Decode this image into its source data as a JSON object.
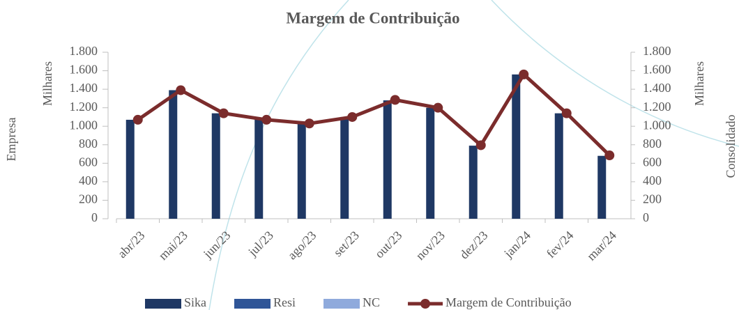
{
  "chart_data": {
    "type": "bar_line",
    "title": "Margem de Contribuição",
    "ylabel": "Milhares",
    "y2label": "Milhares",
    "left_label": "Empresa",
    "right_label": "Consolidado",
    "categories": [
      "abr/23",
      "mai/23",
      "jun/23",
      "jul/23",
      "ago/23",
      "set/23",
      "out/23",
      "nov/23",
      "dez/23",
      "jan/24",
      "fev/24",
      "mar/24"
    ],
    "series": [
      {
        "name": "Sika",
        "color": "#1f3864",
        "kind": "bar",
        "values": [
          1070,
          1390,
          1140,
          1080,
          1030,
          1100,
          1280,
          1200,
          790,
          1560,
          1140,
          680
        ]
      },
      {
        "name": "Resi",
        "color": "#2f5597",
        "kind": "bar",
        "values": [
          0,
          0,
          0,
          0,
          0,
          0,
          0,
          0,
          0,
          0,
          0,
          0
        ]
      },
      {
        "name": "NC",
        "color": "#8faadc",
        "kind": "bar",
        "values": [
          0,
          0,
          0,
          0,
          0,
          0,
          0,
          0,
          0,
          0,
          0,
          0
        ]
      },
      {
        "name": "Margem de Contribuição",
        "color": "#7b2c2c",
        "kind": "line",
        "axis": "y2",
        "values": [
          1070,
          1390,
          1140,
          1070,
          1030,
          1100,
          1285,
          1200,
          795,
          1560,
          1140,
          685
        ]
      }
    ],
    "ylim": [
      0,
      1800
    ],
    "yticks": [
      0,
      200,
      400,
      600,
      800,
      {
        "value": 1000,
        "label": "1.000"
      },
      {
        "value": 1200,
        "label": "1.200"
      },
      {
        "value": 1400,
        "label": "1.400"
      },
      {
        "value": 1600,
        "label": "1.600"
      },
      {
        "value": 1800,
        "label": "1.800"
      }
    ],
    "y2lim": [
      0,
      1800
    ],
    "y2ticks": [
      0,
      200,
      400,
      600,
      800,
      {
        "value": 1000,
        "label": "1.000"
      },
      {
        "value": 1200,
        "label": "1.200"
      },
      {
        "value": 1400,
        "label": "1.400"
      },
      {
        "value": 1600,
        "label": "1.600"
      },
      {
        "value": 1800,
        "label": "1.800"
      }
    ],
    "legend": "bottom"
  }
}
